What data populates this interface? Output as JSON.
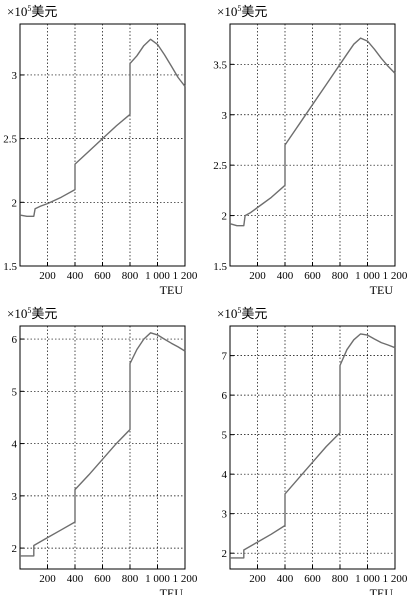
{
  "chart_data": [
    {
      "type": "line",
      "unit_prefix": "×10",
      "unit_exp": "5",
      "unit_suffix": "美元",
      "xlabel": "TEU",
      "xlim": [
        0,
        1200
      ],
      "ylim": [
        1.5,
        3.4
      ],
      "x_ticks": [
        200,
        400,
        600,
        800,
        1000,
        1200
      ],
      "x_tick_labels": [
        "200",
        "400",
        "600",
        "800",
        "1 000",
        "1 200"
      ],
      "y_ticks": [
        1.5,
        2,
        2.5,
        3
      ],
      "y_tick_labels": [
        "1.5",
        "2",
        "2.5",
        "3"
      ],
      "grid": true,
      "series": [
        {
          "x": [
            0,
            50,
            100,
            110,
            150,
            200,
            300,
            400,
            400,
            500,
            600,
            700,
            800,
            800,
            850,
            900,
            950,
            1000,
            1050,
            1100,
            1150,
            1200
          ],
          "y": [
            1.9,
            1.89,
            1.89,
            1.95,
            1.97,
            1.99,
            2.04,
            2.1,
            2.3,
            2.4,
            2.5,
            2.6,
            2.69,
            3.09,
            3.15,
            3.23,
            3.28,
            3.24,
            3.16,
            3.07,
            2.98,
            2.91
          ]
        }
      ]
    },
    {
      "type": "line",
      "unit_prefix": "×10",
      "unit_exp": "5",
      "unit_suffix": "美元",
      "xlabel": "TEU",
      "xlim": [
        0,
        1200
      ],
      "ylim": [
        1.5,
        3.9
      ],
      "x_ticks": [
        200,
        400,
        600,
        800,
        1000,
        1200
      ],
      "x_tick_labels": [
        "200",
        "400",
        "600",
        "800",
        "1 000",
        "1 200"
      ],
      "y_ticks": [
        1.5,
        2,
        2.5,
        3,
        3.5
      ],
      "y_tick_labels": [
        "1.5",
        "2",
        "2.5",
        "3",
        "3.5"
      ],
      "grid": true,
      "series": [
        {
          "x": [
            0,
            50,
            100,
            110,
            150,
            200,
            300,
            400,
            400,
            500,
            600,
            700,
            800,
            800,
            850,
            900,
            950,
            1000,
            1050,
            1100,
            1150,
            1200
          ],
          "y": [
            1.92,
            1.9,
            1.9,
            2.0,
            2.03,
            2.08,
            2.18,
            2.3,
            2.7,
            2.9,
            3.1,
            3.3,
            3.5,
            3.5,
            3.6,
            3.7,
            3.76,
            3.73,
            3.65,
            3.56,
            3.48,
            3.41
          ]
        }
      ]
    },
    {
      "type": "line",
      "unit_prefix": "×10",
      "unit_exp": "5",
      "unit_suffix": "美元",
      "xlabel": "TEU",
      "xlim": [
        0,
        1200
      ],
      "ylim": [
        1.6,
        6.25
      ],
      "x_ticks": [
        200,
        400,
        600,
        800,
        1000,
        1200
      ],
      "x_tick_labels": [
        "200",
        "400",
        "600",
        "800",
        "1 000",
        "1 200"
      ],
      "y_ticks": [
        2,
        3,
        4,
        5,
        6
      ],
      "y_tick_labels": [
        "2",
        "3",
        "4",
        "5",
        "6"
      ],
      "grid": true,
      "series": [
        {
          "x": [
            0,
            50,
            100,
            100,
            200,
            300,
            400,
            400,
            500,
            600,
            700,
            800,
            800,
            850,
            900,
            950,
            1000,
            1050,
            1100,
            1150,
            1200
          ],
          "y": [
            1.85,
            1.85,
            1.85,
            2.05,
            2.2,
            2.35,
            2.5,
            3.12,
            3.4,
            3.7,
            4.0,
            4.27,
            5.53,
            5.8,
            6.0,
            6.12,
            6.08,
            6.0,
            5.92,
            5.85,
            5.77
          ]
        }
      ]
    },
    {
      "type": "line",
      "unit_prefix": "×10",
      "unit_exp": "5",
      "unit_suffix": "美元",
      "xlabel": "TEU",
      "xlim": [
        0,
        1200
      ],
      "ylim": [
        1.6,
        7.75
      ],
      "x_ticks": [
        200,
        400,
        600,
        800,
        1000,
        1200
      ],
      "x_tick_labels": [
        "200",
        "400",
        "600",
        "800",
        "1 000",
        "1 200"
      ],
      "y_ticks": [
        2,
        3,
        4,
        5,
        6,
        7
      ],
      "y_tick_labels": [
        "2",
        "3",
        "4",
        "5",
        "6",
        "7"
      ],
      "grid": true,
      "series": [
        {
          "x": [
            0,
            50,
            100,
            100,
            200,
            300,
            400,
            400,
            500,
            600,
            700,
            800,
            800,
            850,
            900,
            950,
            1000,
            1050,
            1100,
            1150,
            1200
          ],
          "y": [
            1.88,
            1.88,
            1.88,
            2.08,
            2.28,
            2.48,
            2.7,
            3.5,
            3.9,
            4.3,
            4.7,
            5.05,
            6.75,
            7.15,
            7.4,
            7.55,
            7.52,
            7.42,
            7.33,
            7.27,
            7.2
          ]
        }
      ]
    }
  ]
}
